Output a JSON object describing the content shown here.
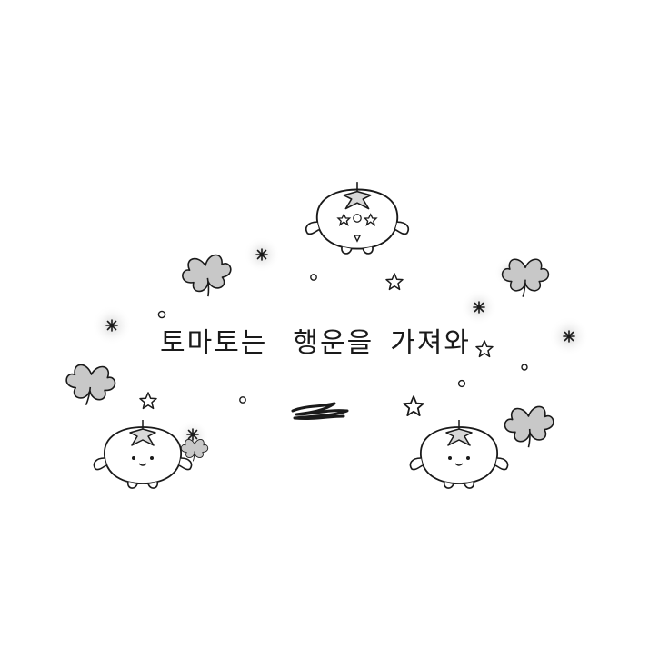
{
  "caption": {
    "word1": "토마토는",
    "word2": "행운을",
    "word3": "가져와"
  },
  "colors": {
    "line": "#1a1a1a",
    "clover_fill": "#c8c8c8",
    "glow": "#d9d9d9",
    "background": "#ffffff"
  },
  "icons": [
    "tomato-character-icon",
    "clover-icon",
    "star-icon",
    "sparkle-icon",
    "dot-icon",
    "scribble-icon"
  ]
}
